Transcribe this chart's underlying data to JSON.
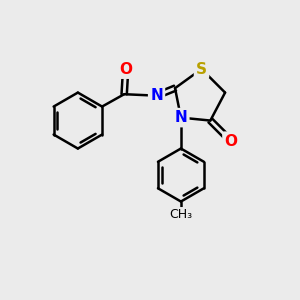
{
  "background_color": "#ebebeb",
  "atom_colors": {
    "C": "#000000",
    "N": "#0000ff",
    "O": "#ff0000",
    "S": "#b8a000"
  },
  "bond_width": 1.8,
  "font_size": 11
}
